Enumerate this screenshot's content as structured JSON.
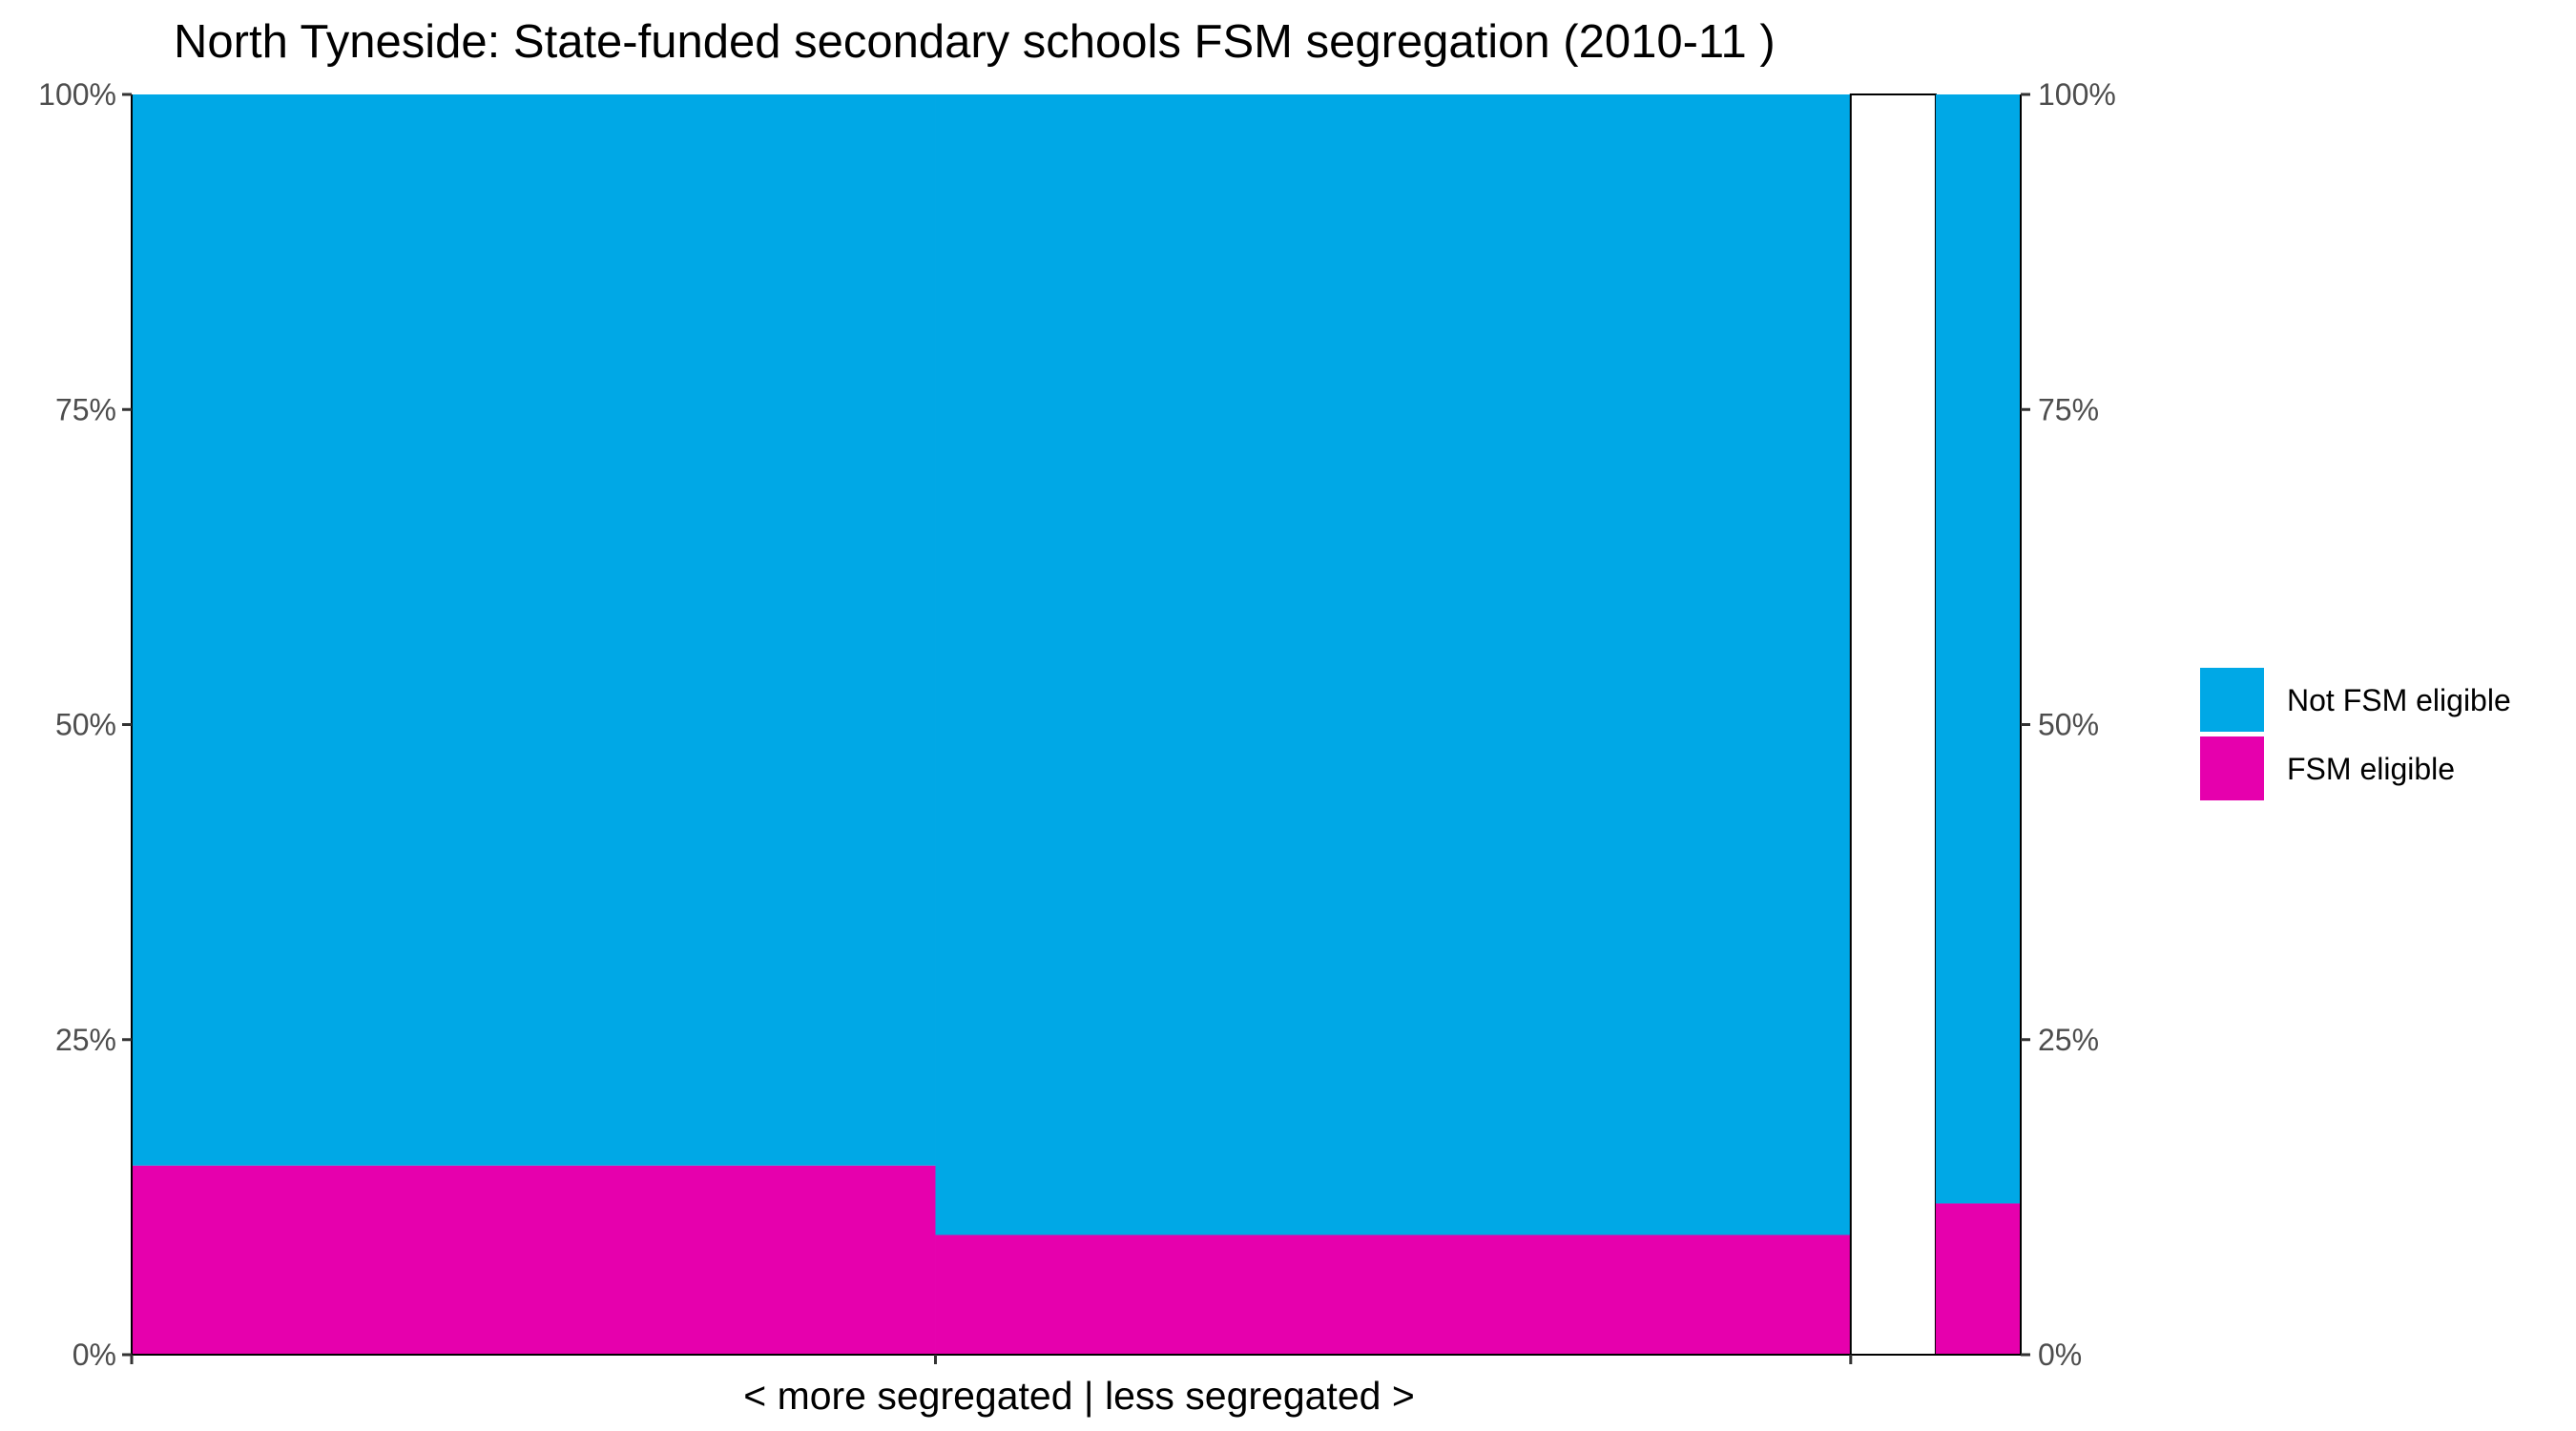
{
  "chart_data": {
    "type": "bar",
    "variant": "marimekko",
    "title": "North Tyneside: State-funded secondary schools FSM segregation (2010-11 )",
    "xlabel": "< more segregated | less segregated >",
    "ylabel": "",
    "y_ticks": [
      "0%",
      "25%",
      "50%",
      "75%",
      "100%"
    ],
    "ylim": [
      0,
      1
    ],
    "x_total": 100,
    "series": [
      {
        "name": "Not FSM eligible",
        "color": "#00A8E6"
      },
      {
        "name": "FSM eligible",
        "color": "#E600AD"
      }
    ],
    "segments": [
      {
        "width": 42.55,
        "fsm_share": 0.15,
        "not_fsm_share": 0.85
      },
      {
        "width": 48.45,
        "fsm_share": 0.095,
        "not_fsm_share": 0.905
      },
      {
        "width": 4.5,
        "empty": true
      },
      {
        "width": 4.5,
        "fsm_share": 0.12,
        "not_fsm_share": 0.88
      }
    ],
    "legend_position": "right",
    "grid": false
  }
}
